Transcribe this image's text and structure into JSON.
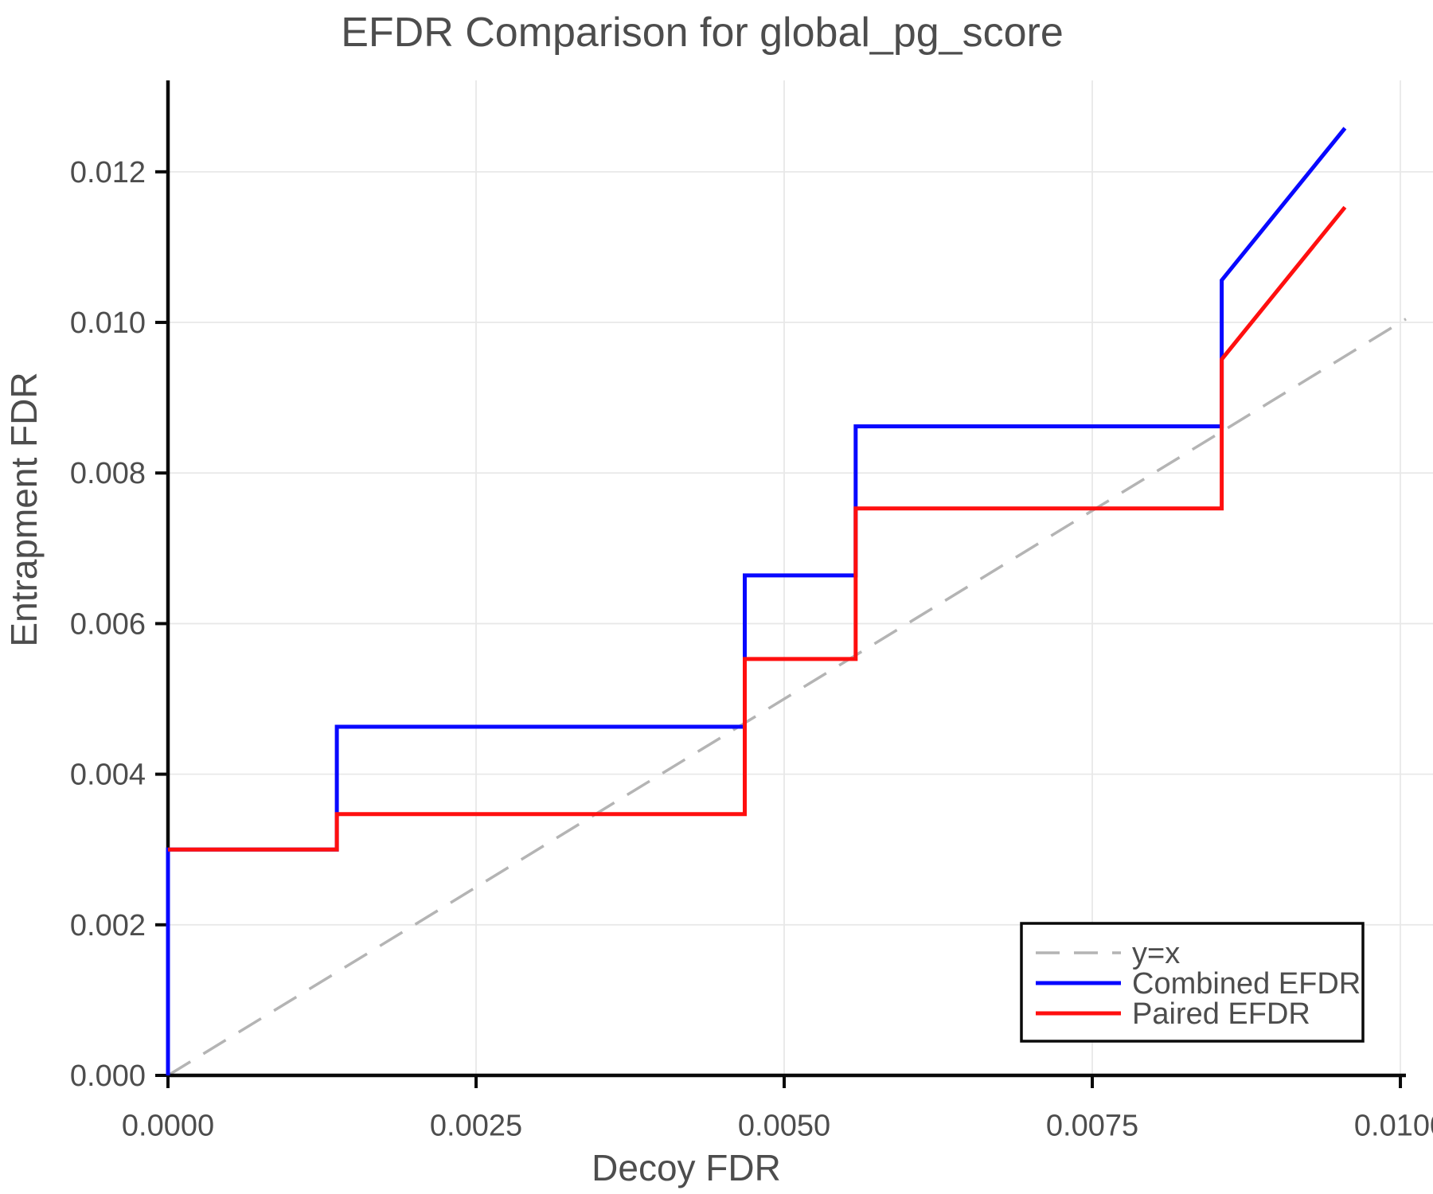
{
  "chart_data": {
    "type": "step-line",
    "title": "EFDR Comparison for global_pg_score",
    "xlabel": "Decoy FDR",
    "ylabel": "Entrapment FDR",
    "xlim": [
      0,
      0.010045
    ],
    "ylim": [
      0,
      0.013214
    ],
    "grid": true,
    "x_ticks": [
      {
        "value": 0.0,
        "label": "0.0000"
      },
      {
        "value": 0.0025,
        "label": "0.0025"
      },
      {
        "value": 0.005,
        "label": "0.0050"
      },
      {
        "value": 0.0075,
        "label": "0.0075"
      },
      {
        "value": 0.01,
        "label": "0.0100"
      }
    ],
    "y_ticks": [
      {
        "value": 0.0,
        "label": "0.000"
      },
      {
        "value": 0.002,
        "label": "0.002"
      },
      {
        "value": 0.004,
        "label": "0.004"
      },
      {
        "value": 0.006,
        "label": "0.006"
      },
      {
        "value": 0.008,
        "label": "0.008"
      },
      {
        "value": 0.01,
        "label": "0.010"
      },
      {
        "value": 0.012,
        "label": "0.012"
      }
    ],
    "identity_line": {
      "label": "y=x",
      "color": "#b4b4b4",
      "dashed": true,
      "from": [
        0,
        0
      ],
      "to": [
        0.010045,
        0.010045
      ]
    },
    "series": [
      {
        "name": "Combined EFDR",
        "color": "#0808ff",
        "points": [
          [
            0.0,
            0.0
          ],
          [
            0.0,
            0.003
          ],
          [
            0.00137,
            0.003
          ],
          [
            0.00137,
            0.00463
          ],
          [
            0.00468,
            0.00463
          ],
          [
            0.00468,
            0.00664
          ],
          [
            0.00558,
            0.00664
          ],
          [
            0.00558,
            0.00862
          ],
          [
            0.00855,
            0.00862
          ],
          [
            0.00855,
            0.01056
          ],
          [
            0.00955,
            0.01258
          ]
        ]
      },
      {
        "name": "Paired EFDR",
        "color": "#ff0f0f",
        "points": [
          [
            0.0,
            0.003
          ],
          [
            0.00137,
            0.003
          ],
          [
            0.00137,
            0.00347
          ],
          [
            0.00468,
            0.00347
          ],
          [
            0.00468,
            0.00553
          ],
          [
            0.00558,
            0.00553
          ],
          [
            0.00558,
            0.00753
          ],
          [
            0.00855,
            0.00753
          ],
          [
            0.00855,
            0.00951
          ],
          [
            0.00955,
            0.01153
          ]
        ]
      }
    ],
    "legend": {
      "position": "lower right",
      "entries": [
        {
          "label": "y=x",
          "color": "#b4b4b4",
          "dashed": true
        },
        {
          "label": "Combined EFDR",
          "color": "#0808ff",
          "dashed": false
        },
        {
          "label": "Paired EFDR",
          "color": "#ff0f0f",
          "dashed": false
        }
      ]
    },
    "style_colors": {
      "text": "#4d4d4d",
      "axis": "#0a0a0a",
      "grid": "#e8e8e8",
      "background": "#ffffff"
    }
  }
}
